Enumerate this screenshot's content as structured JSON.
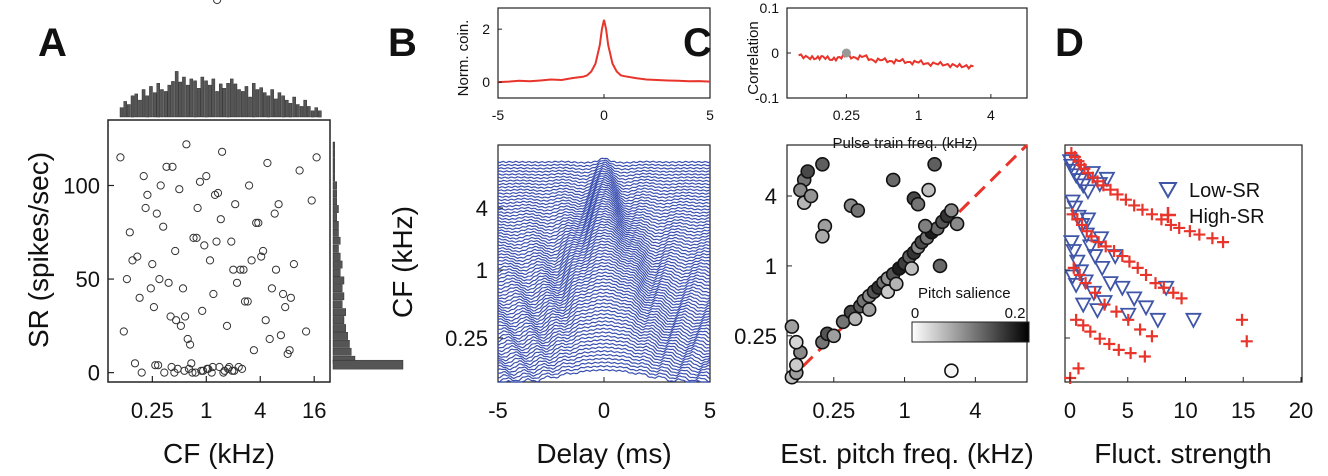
{
  "panels": {
    "A": {
      "letter": "A"
    },
    "B": {
      "letter": "B"
    },
    "C": {
      "letter": "C"
    },
    "D": {
      "letter": "D"
    }
  },
  "chart_data": [
    {
      "id": "A",
      "type": "scatter",
      "xlabel": "CF (kHz)",
      "ylabel": "SR (spikes/sec)",
      "x_scale": "log2",
      "x_ticks": [
        "0.25",
        "1",
        "4",
        "16"
      ],
      "y_ticks": [
        "0",
        "50",
        "100"
      ],
      "ylim": [
        -5,
        135
      ],
      "marker": "open-circle",
      "top_histogram": "CF distribution",
      "right_histogram": "SR distribution",
      "points_cf_khz": [
        0.11,
        0.12,
        0.13,
        0.15,
        0.16,
        0.18,
        0.2,
        0.22,
        0.25,
        0.28,
        0.3,
        0.33,
        0.36,
        0.4,
        0.45,
        0.5,
        0.55,
        0.6,
        0.66,
        0.72,
        0.8,
        0.9,
        1.0,
        1.1,
        1.2,
        1.35,
        1.5,
        1.7,
        1.9,
        2.1,
        2.4,
        2.7,
        3.0,
        3.4,
        3.8,
        4.3,
        4.8,
        5.4,
        6.0,
        6.8,
        7.6,
        8.5,
        9.5,
        11,
        13,
        15,
        17,
        0.14,
        0.26,
        0.42,
        0.62,
        0.95,
        1.45,
        2.2,
        3.2,
        4.6,
        6.4,
        8.8,
        0.17,
        0.31,
        0.52,
        0.78,
        1.25,
        1.8,
        2.6,
        3.6,
        5.1,
        7.2,
        0.21,
        0.38,
        0.58,
        0.85,
        1.3,
        2.0,
        2.9,
        4.1,
        5.8,
        8.1,
        0.24,
        0.46,
        0.7,
        1.05,
        1.6,
        2.3,
        0.34,
        0.48,
        0.68,
        0.92,
        1.15,
        1.4,
        1.75,
        2.05,
        0.27,
        0.44,
        0.64,
        0.88,
        1.18,
        1.55,
        1.95,
        2.5,
        0.19,
        0.29,
        0.41,
        0.57,
        0.76,
        1.02,
        1.32
      ],
      "points_sr_sps": [
        115,
        22,
        50,
        60,
        5,
        40,
        105,
        95,
        58,
        85,
        50,
        78,
        110,
        30,
        65,
        98,
        45,
        122,
        15,
        72,
        88,
        33,
        105,
        60,
        42,
        96,
        118,
        25,
        70,
        90,
        55,
        38,
        100,
        12,
        80,
        65,
        112,
        45,
        55,
        20,
        35,
        12,
        58,
        108,
        22,
        92,
        115,
        75,
        35,
        110,
        18,
        68,
        82,
        48,
        60,
        28,
        90,
        40,
        62,
        100,
        25,
        72,
        95,
        3,
        55,
        80,
        18,
        42,
        88,
        48,
        30,
        102,
        70,
        55,
        38,
        62,
        85,
        10,
        45,
        28,
        0,
        2,
        1,
        3,
        0,
        2,
        5,
        1,
        0,
        3,
        2,
        1,
        4,
        0,
        2,
        1,
        3,
        0,
        1,
        2,
        0,
        4,
        3,
        1,
        0,
        2
      ]
    },
    {
      "id": "B-top",
      "type": "line",
      "ylabel": "Norm. coin.",
      "x_ticks": [
        "-5",
        "0",
        "5"
      ],
      "y_ticks": [
        "0",
        "2"
      ],
      "xlim": [
        -5,
        5
      ],
      "ylim": [
        -0.6,
        2.8
      ],
      "series_color": "#e8342a",
      "x": [
        -5,
        -4.5,
        -4,
        -3.5,
        -3,
        -2.5,
        -2,
        -1.5,
        -1,
        -0.8,
        -0.6,
        -0.4,
        -0.2,
        -0.1,
        0,
        0.1,
        0.2,
        0.4,
        0.6,
        0.8,
        1,
        1.5,
        2,
        2.5,
        3,
        3.5,
        4,
        4.5,
        5
      ],
      "values": [
        0.0,
        0.02,
        0.05,
        0.03,
        0.06,
        0.1,
        0.08,
        0.15,
        0.2,
        0.25,
        0.4,
        0.7,
        1.4,
        2.0,
        2.35,
        2.0,
        1.4,
        0.7,
        0.4,
        0.25,
        0.22,
        0.15,
        0.1,
        0.08,
        0.06,
        0.05,
        0.03,
        0.04,
        0.02
      ]
    },
    {
      "id": "B-main",
      "type": "line",
      "xlabel": "Delay (ms)",
      "ylabel": "CF (kHz)",
      "x_ticks": [
        "-5",
        "0",
        "5"
      ],
      "y_ticks": [
        "0.25",
        "1",
        "4"
      ],
      "xlim": [
        -5,
        5
      ],
      "series_color": "#3a4fb0",
      "description_count": 72
    },
    {
      "id": "C-top",
      "type": "line",
      "xlabel": "Pulse train freq. (kHz)",
      "ylabel": "Correlation",
      "x_scale": "log2",
      "x_ticks": [
        "0.25",
        "1",
        "4"
      ],
      "y_ticks": [
        "-0.1",
        "0",
        "0.1"
      ],
      "ylim": [
        -0.1,
        0.1
      ],
      "series_color": "#e8342a",
      "x": [
        0.1,
        0.12,
        0.14,
        0.16,
        0.19,
        0.22,
        0.25,
        0.3,
        0.35,
        0.42,
        0.5,
        0.6,
        0.7,
        0.85,
        1.0,
        1.2,
        1.45,
        1.75,
        2.1,
        2.5,
        3.0
      ],
      "values": [
        -0.005,
        -0.01,
        -0.012,
        -0.008,
        -0.015,
        -0.01,
        -0.005,
        -0.012,
        -0.006,
        -0.018,
        -0.014,
        -0.02,
        -0.016,
        -0.022,
        -0.019,
        -0.025,
        -0.023,
        -0.027,
        -0.028,
        -0.03,
        -0.031
      ],
      "highlight_point": {
        "x": 0.25,
        "y": 0.0
      }
    },
    {
      "id": "C-main",
      "type": "scatter",
      "xlabel": "Est. pitch freq. (kHz)",
      "ylabel": "",
      "x_scale": "log2",
      "y_scale": "log2",
      "x_ticks": [
        "0.25",
        "1",
        "4"
      ],
      "y_ticks": [
        "0.25",
        "1",
        "4"
      ],
      "colorbar_label": "Pitch salience",
      "colorbar_ticks": [
        "0",
        "0.2"
      ],
      "diagonal_color": "#e8342a",
      "points": [
        {
          "x": 0.11,
          "y": 0.11,
          "s": 0.05
        },
        {
          "x": 0.12,
          "y": 0.12,
          "s": 0.08
        },
        {
          "x": 0.13,
          "y": 0.18,
          "s": 0.1
        },
        {
          "x": 0.11,
          "y": 0.3,
          "s": 0.08
        },
        {
          "x": 0.12,
          "y": 0.14,
          "s": 0.04
        },
        {
          "x": 0.2,
          "y": 0.22,
          "s": 0.12
        },
        {
          "x": 0.22,
          "y": 0.26,
          "s": 0.15
        },
        {
          "x": 0.25,
          "y": 0.25,
          "s": 0.08
        },
        {
          "x": 0.3,
          "y": 0.33,
          "s": 0.12
        },
        {
          "x": 0.35,
          "y": 0.4,
          "s": 0.16
        },
        {
          "x": 0.38,
          "y": 0.35,
          "s": 0.06
        },
        {
          "x": 0.42,
          "y": 0.45,
          "s": 0.14
        },
        {
          "x": 0.45,
          "y": 0.5,
          "s": 0.12
        },
        {
          "x": 0.5,
          "y": 0.55,
          "s": 0.1
        },
        {
          "x": 0.55,
          "y": 0.6,
          "s": 0.15
        },
        {
          "x": 0.6,
          "y": 0.65,
          "s": 0.18
        },
        {
          "x": 0.66,
          "y": 0.72,
          "s": 0.12
        },
        {
          "x": 0.72,
          "y": 0.78,
          "s": 0.09
        },
        {
          "x": 0.8,
          "y": 0.85,
          "s": 0.15
        },
        {
          "x": 0.9,
          "y": 0.95,
          "s": 0.2
        },
        {
          "x": 1.0,
          "y": 1.05,
          "s": 0.17
        },
        {
          "x": 1.1,
          "y": 1.2,
          "s": 0.14
        },
        {
          "x": 1.2,
          "y": 1.3,
          "s": 0.18
        },
        {
          "x": 1.3,
          "y": 1.45,
          "s": 0.1
        },
        {
          "x": 1.4,
          "y": 1.6,
          "s": 0.16
        },
        {
          "x": 1.55,
          "y": 1.75,
          "s": 0.12
        },
        {
          "x": 1.7,
          "y": 1.95,
          "s": 0.2
        },
        {
          "x": 1.9,
          "y": 2.1,
          "s": 0.13
        },
        {
          "x": 2.1,
          "y": 2.4,
          "s": 0.15
        },
        {
          "x": 2.3,
          "y": 2.7,
          "s": 0.18
        },
        {
          "x": 2.5,
          "y": 3.0,
          "s": 0.1
        },
        {
          "x": 0.72,
          "y": 0.6,
          "s": 0.04
        },
        {
          "x": 0.85,
          "y": 0.7,
          "s": 0.06
        },
        {
          "x": 1.15,
          "y": 0.95,
          "s": 0.05
        },
        {
          "x": 0.5,
          "y": 0.42,
          "s": 0.08
        },
        {
          "x": 0.14,
          "y": 5.5,
          "s": 0.12
        },
        {
          "x": 0.15,
          "y": 6.5,
          "s": 0.16
        },
        {
          "x": 0.13,
          "y": 4.5,
          "s": 0.1
        },
        {
          "x": 0.14,
          "y": 3.5,
          "s": 0.06
        },
        {
          "x": 0.16,
          "y": 4.0,
          "s": 0.09
        },
        {
          "x": 0.2,
          "y": 7.5,
          "s": 0.14
        },
        {
          "x": 0.21,
          "y": 2.2,
          "s": 0.08
        },
        {
          "x": 0.2,
          "y": 1.8,
          "s": 0.07
        },
        {
          "x": 0.35,
          "y": 3.3,
          "s": 0.1
        },
        {
          "x": 0.4,
          "y": 3.0,
          "s": 0.12
        },
        {
          "x": 0.8,
          "y": 5.5,
          "s": 0.13
        },
        {
          "x": 1.2,
          "y": 3.8,
          "s": 0.16
        },
        {
          "x": 1.3,
          "y": 3.4,
          "s": 0.12
        },
        {
          "x": 1.6,
          "y": 4.5,
          "s": 0.05
        },
        {
          "x": 1.8,
          "y": 7.5,
          "s": 0.14
        },
        {
          "x": 1.5,
          "y": 2.2,
          "s": 0.11
        },
        {
          "x": 2.0,
          "y": 1.0,
          "s": 0.13
        },
        {
          "x": 2.8,
          "y": 2.3,
          "s": 0.1
        },
        {
          "x": 0.12,
          "y": 0.22,
          "s": 0.03
        },
        {
          "x": 2.5,
          "y": 0.125,
          "s": 0.0
        }
      ]
    },
    {
      "id": "D",
      "type": "scatter",
      "xlabel": "Fluct. strength",
      "ylabel": "",
      "x_ticks": [
        "0",
        "5",
        "10",
        "15",
        "20"
      ],
      "xlim": [
        0,
        20
      ],
      "ylim_log2_khz": [
        0.1,
        7
      ],
      "series": [
        {
          "name": "Low-SR",
          "marker": "triangle-down",
          "color": "#3f55a8",
          "x": [
            0.1,
            0.2,
            0.4,
            0.6,
            0.9,
            1.2,
            1.6,
            2.0,
            2.6,
            3.2,
            0.3,
            0.5,
            0.8,
            1.1,
            1.5,
            1.8,
            2.2,
            2.8,
            3.5,
            4.5,
            5.5,
            6.5,
            7.5,
            0.2,
            0.4,
            0.7,
            1.0,
            1.4,
            2.1,
            3.0,
            0.3,
            0.6,
            1.2,
            2.4,
            5.0,
            10.5,
            1.6,
            2.7,
            3.9,
            8.2
          ],
          "y_khz": [
            6.0,
            5.5,
            5.0,
            4.6,
            4.2,
            3.8,
            3.4,
            4.8,
            3.9,
            4.3,
            2.8,
            2.5,
            2.1,
            1.8,
            1.5,
            1.2,
            1.0,
            0.8,
            0.6,
            0.55,
            0.45,
            0.38,
            0.3,
            1.3,
            1.1,
            0.9,
            0.75,
            0.62,
            0.5,
            0.42,
            0.68,
            0.58,
            0.4,
            0.36,
            0.33,
            0.3,
            2.0,
            1.4,
            1.0,
            0.55
          ]
        },
        {
          "name": "High-SR",
          "marker": "plus",
          "color": "#e8342a",
          "x": [
            0.2,
            0.5,
            0.8,
            1.0,
            1.3,
            1.6,
            2.0,
            2.4,
            2.9,
            3.5,
            4.1,
            4.8,
            5.5,
            6.2,
            7.0,
            7.8,
            8.6,
            9.3,
            10.2,
            11.0,
            12.1,
            13.0,
            14.6,
            15.0,
            0.3,
            0.7,
            1.1,
            1.5,
            1.9,
            2.5,
            3.1,
            3.8,
            4.5,
            5.1,
            5.8,
            6.5,
            7.3,
            8.0,
            8.8,
            9.5,
            0.4,
            0.9,
            1.4,
            2.2,
            3.0,
            4.0,
            5.0,
            6.0,
            7.0,
            0.6,
            1.2,
            1.8,
            2.6,
            3.4,
            4.2,
            5.2,
            6.4,
            0.1,
            0.8
          ],
          "y_khz": [
            7.0,
            6.5,
            6.0,
            5.6,
            5.2,
            4.8,
            4.4,
            4.1,
            3.8,
            3.5,
            3.2,
            2.9,
            2.6,
            2.4,
            2.2,
            2.0,
            1.8,
            1.7,
            1.6,
            1.5,
            1.4,
            1.3,
            0.3,
            0.2,
            2.2,
            2.0,
            1.8,
            1.6,
            1.45,
            1.3,
            1.2,
            1.1,
            1.0,
            0.9,
            0.8,
            0.7,
            0.6,
            0.55,
            0.5,
            0.45,
            0.8,
            0.7,
            0.6,
            0.5,
            0.4,
            0.35,
            0.3,
            0.25,
            0.22,
            0.3,
            0.27,
            0.24,
            0.21,
            0.19,
            0.17,
            0.16,
            0.15,
            0.1,
            0.12
          ]
        }
      ]
    }
  ]
}
